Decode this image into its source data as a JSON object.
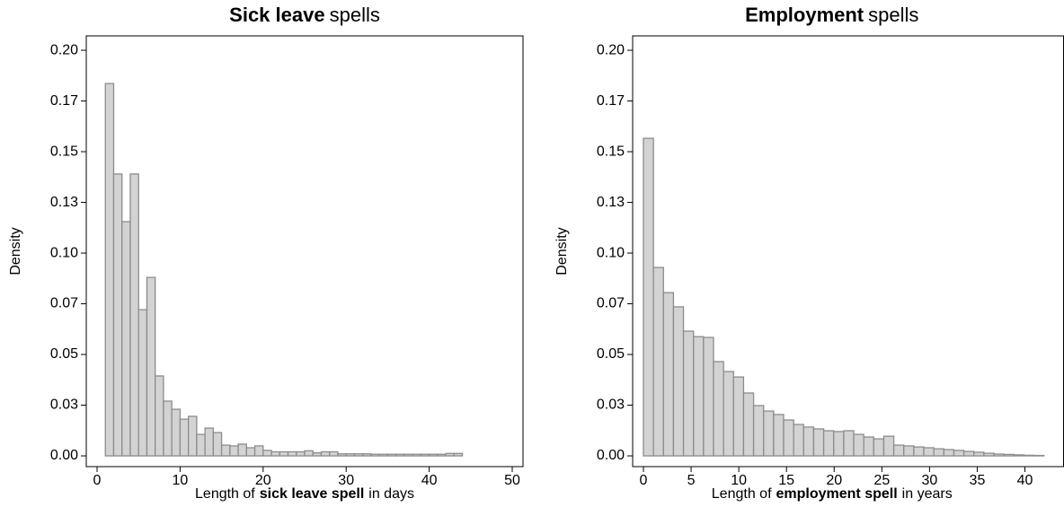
{
  "chart_data": [
    {
      "type": "histogram",
      "title": [
        {
          "text": "Sick leave",
          "bold": true
        },
        {
          "text": "spells",
          "bold": false
        }
      ],
      "x_label": [
        {
          "text": "Length of",
          "bold": false
        },
        {
          "text": "sick leave spell",
          "bold": true
        },
        {
          "text": "in days",
          "bold": false
        }
      ],
      "y_label": "Density",
      "bins": [
        1,
        2,
        3,
        4,
        5,
        6,
        7,
        8,
        9,
        10,
        11,
        12,
        13,
        14,
        15,
        16,
        17,
        18,
        19,
        20,
        21,
        22,
        23,
        24,
        25,
        26,
        27,
        28,
        29,
        30,
        31,
        32,
        33,
        34,
        35,
        36,
        37,
        38,
        39,
        40,
        41,
        42,
        43,
        44
      ],
      "values": [
        0.1836,
        0.139,
        0.1155,
        0.139,
        0.0721,
        0.088,
        0.0394,
        0.027,
        0.023,
        0.0181,
        0.0195,
        0.0106,
        0.0137,
        0.0115,
        0.0053,
        0.0049,
        0.0058,
        0.004,
        0.0049,
        0.0027,
        0.002,
        0.002,
        0.002,
        0.002,
        0.0025,
        0.0015,
        0.002,
        0.002,
        0.001,
        0.001,
        0.001,
        0.001,
        0.0008,
        0.0008,
        0.0008,
        0.0008,
        0.0008,
        0.0008,
        0.0008,
        0.0008,
        0.0008,
        0.0012,
        0.0012
      ],
      "color": "#d3d3d3",
      "edge_color": "#8c8c8c",
      "xlim": [
        -1.3,
        51.3
      ],
      "xticks": [
        0,
        10,
        20,
        30,
        40,
        50
      ],
      "ylim": [
        -0.0053,
        0.2071
      ],
      "yticks": [
        {
          "value": 0,
          "label": "0.00"
        },
        {
          "value": 0.025,
          "label": "0.03"
        },
        {
          "value": 0.05,
          "label": "0.05"
        },
        {
          "value": 0.075,
          "label": "0.07"
        },
        {
          "value": 0.1,
          "label": "0.10"
        },
        {
          "value": 0.125,
          "label": "0.13"
        },
        {
          "value": 0.15,
          "label": "0.15"
        },
        {
          "value": 0.175,
          "label": "0.17"
        },
        {
          "value": 0.2,
          "label": "0.20"
        }
      ]
    },
    {
      "type": "histogram",
      "title": [
        {
          "text": "Employment",
          "bold": true
        },
        {
          "text": "spells",
          "bold": false
        }
      ],
      "x_label": [
        {
          "text": "Length of",
          "bold": false
        },
        {
          "text": "employment spell",
          "bold": true
        },
        {
          "text": "in years",
          "bold": false
        }
      ],
      "y_label": "Density",
      "bins": [
        0,
        1.05,
        2.1,
        3.15,
        4.2,
        5.25,
        6.3,
        7.35,
        8.4,
        9.45,
        10.5,
        11.55,
        12.6,
        13.65,
        14.7,
        15.75,
        16.8,
        17.85,
        18.9,
        19.95,
        21,
        22.05,
        23.1,
        24.15,
        25.2,
        26.25,
        27.3,
        28.35,
        29.4,
        30.45,
        31.5,
        32.55,
        33.6,
        34.65,
        35.7,
        36.75,
        37.8,
        38.85,
        39.9,
        40.95,
        42
      ],
      "values": [
        0.1566,
        0.0929,
        0.0805,
        0.0735,
        0.0615,
        0.0588,
        0.0584,
        0.0465,
        0.0416,
        0.0389,
        0.031,
        0.0248,
        0.0221,
        0.0204,
        0.0177,
        0.0155,
        0.0142,
        0.0133,
        0.0124,
        0.012,
        0.0124,
        0.0106,
        0.0093,
        0.0084,
        0.0097,
        0.0053,
        0.0049,
        0.0044,
        0.004,
        0.0035,
        0.0031,
        0.0027,
        0.0022,
        0.0018,
        0.0013,
        0.0009,
        0.0007,
        0.0005,
        0.0003,
        0.0002
      ],
      "color": "#d3d3d3",
      "edge_color": "#8c8c8c",
      "xlim": [
        -1.13,
        44.05
      ],
      "xticks": [
        0,
        5,
        10,
        15,
        20,
        25,
        30,
        35,
        40
      ],
      "ylim": [
        -0.0053,
        0.2071
      ],
      "yticks": [
        {
          "value": 0,
          "label": "0.00"
        },
        {
          "value": 0.025,
          "label": "0.03"
        },
        {
          "value": 0.05,
          "label": "0.05"
        },
        {
          "value": 0.075,
          "label": "0.07"
        },
        {
          "value": 0.1,
          "label": "0.10"
        },
        {
          "value": 0.125,
          "label": "0.13"
        },
        {
          "value": 0.15,
          "label": "0.15"
        },
        {
          "value": 0.175,
          "label": "0.17"
        },
        {
          "value": 0.2,
          "label": "0.20"
        }
      ]
    }
  ]
}
